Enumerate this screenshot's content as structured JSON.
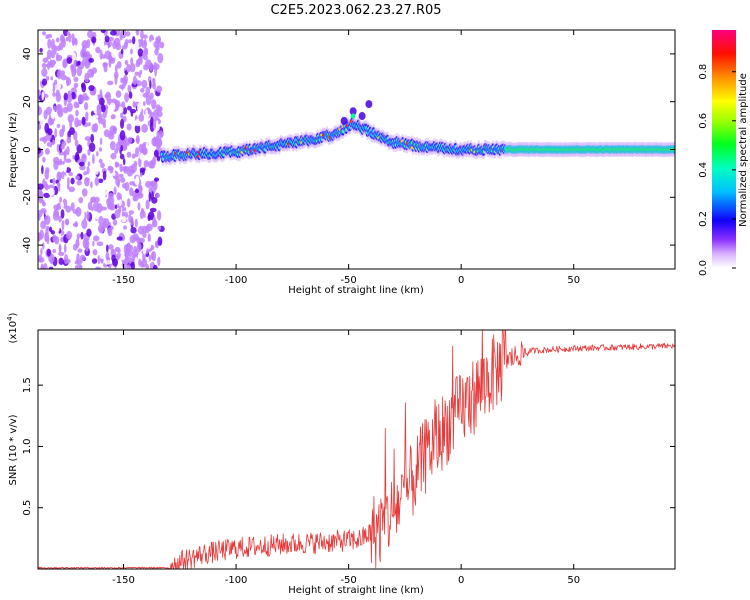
{
  "figure": {
    "title": "C2E5.2023.062.23.27.R05"
  },
  "chart_data": [
    {
      "type": "heatmap",
      "title": "",
      "xlabel": "Height of straight line (km)",
      "ylabel": "Frequency (Hz)",
      "xlim": [
        -188,
        95
      ],
      "ylim": [
        -50,
        50
      ],
      "xticks": [
        -150,
        -100,
        -50,
        0,
        50
      ],
      "xtick_labels": [
        "-150",
        "-100",
        "-50",
        "0",
        "50"
      ],
      "yticks": [
        -40,
        -20,
        0,
        20,
        40
      ],
      "ytick_labels": [
        "-40",
        "-20",
        "0",
        "20",
        "40"
      ],
      "colorbar": {
        "label": "Normalized spectral amplitude",
        "range": [
          0,
          0.97
        ],
        "ticks": [
          0.0,
          0.2,
          0.4,
          0.6,
          0.8
        ],
        "tick_labels": [
          "0.0",
          "0.2",
          "0.4",
          "0.6",
          "0.8"
        ],
        "colormap": [
          "#ffffff",
          "#c080ff",
          "#6000e0",
          "#0000ff",
          "#00b0ff",
          "#00ffc0",
          "#00ff00",
          "#c0ff00",
          "#ffff00",
          "#ff8000",
          "#ff0000",
          "#ff0080"
        ]
      },
      "ridge": {
        "start_km": -133,
        "points": [
          {
            "x": -133,
            "y": -3
          },
          {
            "x": -120,
            "y": -2
          },
          {
            "x": -100,
            "y": -1
          },
          {
            "x": -80,
            "y": 2
          },
          {
            "x": -65,
            "y": 4
          },
          {
            "x": -55,
            "y": 7
          },
          {
            "x": -48,
            "y": 11
          },
          {
            "x": -40,
            "y": 7
          },
          {
            "x": -30,
            "y": 3
          },
          {
            "x": -15,
            "y": 1
          },
          {
            "x": 0,
            "y": 0
          },
          {
            "x": 20,
            "y": 0
          },
          {
            "x": 50,
            "y": 0
          },
          {
            "x": 95,
            "y": 0
          }
        ]
      },
      "grid": false
    },
    {
      "type": "line",
      "title": "",
      "xlabel": "Height of straight line (km)",
      "ylabel": "SNR (10 * v/v)",
      "y_multiplier_label": "(x10",
      "y_multiplier_exp": "4",
      "y_multiplier_close": ")",
      "xlim": [
        -188,
        95
      ],
      "ylim": [
        0,
        1.95
      ],
      "xticks": [
        -150,
        -100,
        -50,
        0,
        50
      ],
      "xtick_labels": [
        "-150",
        "-100",
        "-50",
        "0",
        "50"
      ],
      "yticks": [
        0.5,
        1.0,
        1.5
      ],
      "ytick_labels": [
        "0.5",
        "1.0",
        "1.5"
      ],
      "color": "#e83a3a",
      "envelope_points": [
        {
          "x": -188,
          "y": 0.01
        },
        {
          "x": -130,
          "y": 0.01
        },
        {
          "x": -125,
          "y": 0.06
        },
        {
          "x": -115,
          "y": 0.12
        },
        {
          "x": -100,
          "y": 0.17
        },
        {
          "x": -80,
          "y": 0.2
        },
        {
          "x": -60,
          "y": 0.22
        },
        {
          "x": -45,
          "y": 0.24
        },
        {
          "x": -35,
          "y": 0.35
        },
        {
          "x": -25,
          "y": 0.6
        },
        {
          "x": -15,
          "y": 0.95
        },
        {
          "x": -5,
          "y": 1.2
        },
        {
          "x": 5,
          "y": 1.4
        },
        {
          "x": 12,
          "y": 1.55
        },
        {
          "x": 20,
          "y": 1.7
        },
        {
          "x": 30,
          "y": 1.78
        },
        {
          "x": 50,
          "y": 1.8
        },
        {
          "x": 95,
          "y": 1.82
        }
      ],
      "grid": false
    }
  ]
}
